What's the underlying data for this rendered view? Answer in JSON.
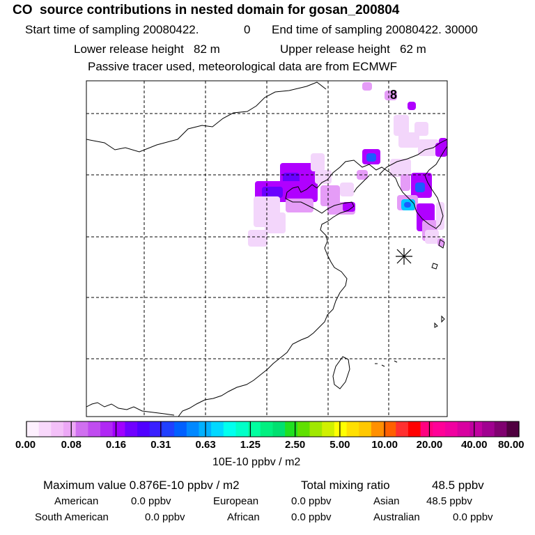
{
  "title": "CO  source contributions in nested domain for gosan_200804",
  "sampling": {
    "start_label": "Start time of sampling 20080422.",
    "start_value": "0",
    "end_label": "End time of sampling 20080422. 30000"
  },
  "release": {
    "lower": "Lower release height   82 m",
    "upper": "Upper release height   62 m"
  },
  "note": "Passive tracer used, meteorological data are from ECMWF",
  "map": {
    "marker_label": "8",
    "grid": "dashed",
    "station_marker": "asterisk",
    "plume_colors": [
      "#f3d6fb",
      "#e59cf7",
      "#b000ff",
      "#6a00ff",
      "#1c5cff",
      "#00c8ff"
    ]
  },
  "colorbar": {
    "labels": [
      "0.00",
      "0.08",
      "0.16",
      "0.31",
      "0.63",
      "1.25",
      "2.50",
      "5.00",
      "10.00",
      "20.00",
      "40.00",
      "80.00"
    ],
    "unit": "10E-10 ppbv / m2",
    "colors": [
      "#fdf0fe",
      "#f8d8fb",
      "#f3c0f8",
      "#eca8f6",
      "#d070f0",
      "#c04cf0",
      "#b028f4",
      "#a000ff",
      "#7000ff",
      "#5000ff",
      "#3a20ff",
      "#2040ff",
      "#0060ff",
      "#0088ff",
      "#00b0ff",
      "#00d8ff",
      "#00ffee",
      "#00ffc8",
      "#00ffa0",
      "#00f080",
      "#00e070",
      "#20e020",
      "#60e000",
      "#a0e800",
      "#d0f000",
      "#ffff00",
      "#ffe000",
      "#ffc800",
      "#ff9000",
      "#ff6000",
      "#ff3030",
      "#ff0000",
      "#ff0080",
      "#ff0098",
      "#f000a0",
      "#d800a0",
      "#c000a0",
      "#a00090",
      "#800070",
      "#500040"
    ]
  },
  "stats": {
    "max_label": "Maximum value  0.876E-10 ppbv / m2",
    "total_label": "Total mixing ratio",
    "total_value": "48.5 ppbv",
    "regions": [
      {
        "name": "American",
        "value": "0.0 ppbv"
      },
      {
        "name": "European",
        "value": "0.0 ppbv"
      },
      {
        "name": "Asian",
        "value": "48.5 ppbv"
      },
      {
        "name": "South American",
        "value": "0.0 ppbv"
      },
      {
        "name": "African",
        "value": "0.0 ppbv"
      },
      {
        "name": "Australian",
        "value": "0.0 ppbv"
      }
    ]
  }
}
